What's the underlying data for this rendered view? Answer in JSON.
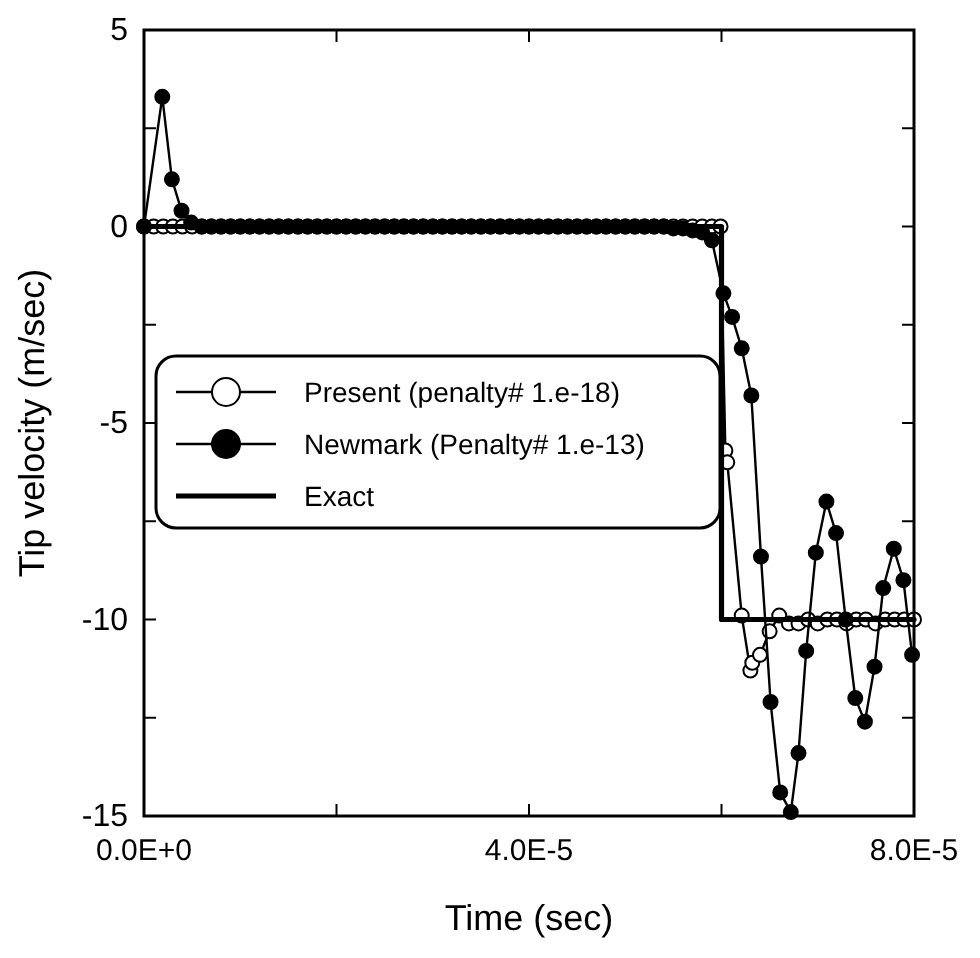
{
  "chart_data": {
    "type": "line",
    "xlabel": "Time (sec)",
    "ylabel": "Tip velocity (m/sec)",
    "xlim": [
      0,
      8e-05
    ],
    "ylim": [
      -15,
      5
    ],
    "xticks": [
      {
        "value": 0,
        "label": "0.0E+0"
      },
      {
        "value": 2e-05,
        "label": null
      },
      {
        "value": 4e-05,
        "label": "4.0E-5"
      },
      {
        "value": 6e-05,
        "label": null
      },
      {
        "value": 8e-05,
        "label": "8.0E-5"
      }
    ],
    "yticks": [
      -15,
      {
        "value": -12.5,
        "label": null
      },
      -10,
      {
        "value": -7.5,
        "label": null
      },
      -5,
      {
        "value": -2.5,
        "label": null
      },
      0,
      {
        "value": 2.5,
        "label": null
      },
      5
    ],
    "grid": false,
    "legend": "left",
    "series": [
      {
        "name": "Present (penalty# 1.e-18)",
        "color": "#000000",
        "marker": "circle",
        "x": [
          0,
          1e-06,
          2e-06,
          3e-06,
          4e-06,
          5e-06,
          6e-06,
          7e-06,
          8e-06,
          9e-06,
          1e-05,
          1.1e-05,
          1.2e-05,
          1.3e-05,
          1.4e-05,
          1.5e-05,
          1.6e-05,
          1.7e-05,
          1.8e-05,
          1.9e-05,
          2e-05,
          2.1e-05,
          2.2e-05,
          2.3e-05,
          2.4e-05,
          2.5e-05,
          2.6e-05,
          2.7e-05,
          2.8e-05,
          2.9e-05,
          3e-05,
          3.1e-05,
          3.2e-05,
          3.3e-05,
          3.4e-05,
          3.5e-05,
          3.6e-05,
          3.7e-05,
          3.8e-05,
          3.9e-05,
          4e-05,
          4.1e-05,
          4.2e-05,
          4.3e-05,
          4.4e-05,
          4.5e-05,
          4.6e-05,
          4.7e-05,
          4.8e-05,
          4.9e-05,
          5e-05,
          5.1e-05,
          5.2e-05,
          5.3e-05,
          5.4e-05,
          5.5e-05,
          5.6e-05,
          5.7e-05,
          5.8e-05,
          5.9e-05,
          5.99e-05,
          6.04e-05,
          6.06e-05,
          6.21e-05,
          6.3e-05,
          6.32e-05,
          6.4e-05,
          6.5e-05,
          6.6e-05,
          6.7e-05,
          6.8e-05,
          6.9e-05,
          7e-05,
          7.1e-05,
          7.2e-05,
          7.3e-05,
          7.4e-05,
          7.5e-05,
          7.6e-05,
          7.7e-05,
          7.8e-05,
          7.9e-05,
          8e-05
        ],
        "values": [
          0,
          0,
          0,
          0,
          0,
          0,
          0,
          0,
          0,
          0,
          0,
          0,
          0,
          0,
          0,
          0,
          0,
          0,
          0,
          0,
          0,
          0,
          0,
          0,
          0,
          0,
          0,
          0,
          0,
          0,
          0,
          0,
          0,
          0,
          0,
          0,
          0,
          0,
          0,
          0,
          0,
          0,
          0,
          0,
          0,
          0,
          0,
          0,
          0,
          0,
          0,
          0,
          0,
          0,
          0,
          0,
          0,
          0,
          0,
          0,
          0,
          -5.7,
          -6.0,
          -9.9,
          -11.3,
          -11.1,
          -10.9,
          -10.3,
          -9.9,
          -10.1,
          -10.1,
          -10.0,
          -10.1,
          -10.0,
          -10.0,
          -10.1,
          -10.0,
          -10.0,
          -10.1,
          -10.0,
          -10.0,
          -10.0,
          -10.0
        ]
      },
      {
        "name": "Newmark (Penalty# 1.e-13)",
        "color": "#000000",
        "marker": "circle",
        "x": [
          0,
          1.9e-06,
          2.9e-06,
          3.9e-06,
          4.9e-06,
          6e-06,
          7e-06,
          8e-06,
          9e-06,
          1e-05,
          1.1e-05,
          1.2e-05,
          1.3e-05,
          1.4e-05,
          1.5e-05,
          1.6e-05,
          1.7e-05,
          1.8e-05,
          1.9e-05,
          2e-05,
          2.1e-05,
          2.2e-05,
          2.3e-05,
          2.4e-05,
          2.5e-05,
          2.6e-05,
          2.7e-05,
          2.8e-05,
          2.9e-05,
          3e-05,
          3.1e-05,
          3.2e-05,
          3.3e-05,
          3.4e-05,
          3.5e-05,
          3.6e-05,
          3.7e-05,
          3.8e-05,
          3.9e-05,
          4e-05,
          4.1e-05,
          4.2e-05,
          4.3e-05,
          4.4e-05,
          4.5e-05,
          4.6e-05,
          4.7e-05,
          4.8e-05,
          4.9e-05,
          5e-05,
          5.1e-05,
          5.2e-05,
          5.3e-05,
          5.4e-05,
          5.5e-05,
          5.6e-05,
          5.7e-05,
          5.8e-05,
          5.9e-05,
          6.02e-05,
          6.11e-05,
          6.21e-05,
          6.31e-05,
          6.41e-05,
          6.51e-05,
          6.61e-05,
          6.72e-05,
          6.8e-05,
          6.88e-05,
          6.98e-05,
          7.09e-05,
          7.19e-05,
          7.29e-05,
          7.39e-05,
          7.49e-05,
          7.59e-05,
          7.68e-05,
          7.79e-05,
          7.89e-05,
          7.98e-05
        ],
        "values": [
          0,
          3.3,
          1.2,
          0.4,
          0.1,
          0,
          0,
          0,
          0,
          0,
          0,
          0,
          0,
          0,
          0,
          0,
          0,
          0,
          0,
          0,
          0,
          0,
          0,
          0,
          0,
          0,
          0,
          0,
          0,
          0,
          0,
          0,
          0,
          0,
          0,
          0,
          0,
          0,
          0,
          0,
          0,
          0,
          0,
          0,
          0,
          0,
          0,
          0,
          0,
          0,
          0,
          0,
          0,
          0,
          -0.05,
          -0.05,
          -0.1,
          -0.15,
          -0.35,
          -1.7,
          -2.3,
          -3.1,
          -4.3,
          -8.4,
          -12.1,
          -14.4,
          -14.9,
          -13.4,
          -10.8,
          -8.3,
          -7.0,
          -7.8,
          -10.0,
          -12.0,
          -12.6,
          -11.2,
          -9.2,
          -8.2,
          -9.0,
          -10.9
        ]
      },
      {
        "name": "Exact",
        "color": "#000000",
        "marker": "none",
        "x": [
          0,
          6e-05,
          6e-05,
          8e-05
        ],
        "values": [
          0,
          0,
          -10,
          -10
        ]
      }
    ]
  }
}
